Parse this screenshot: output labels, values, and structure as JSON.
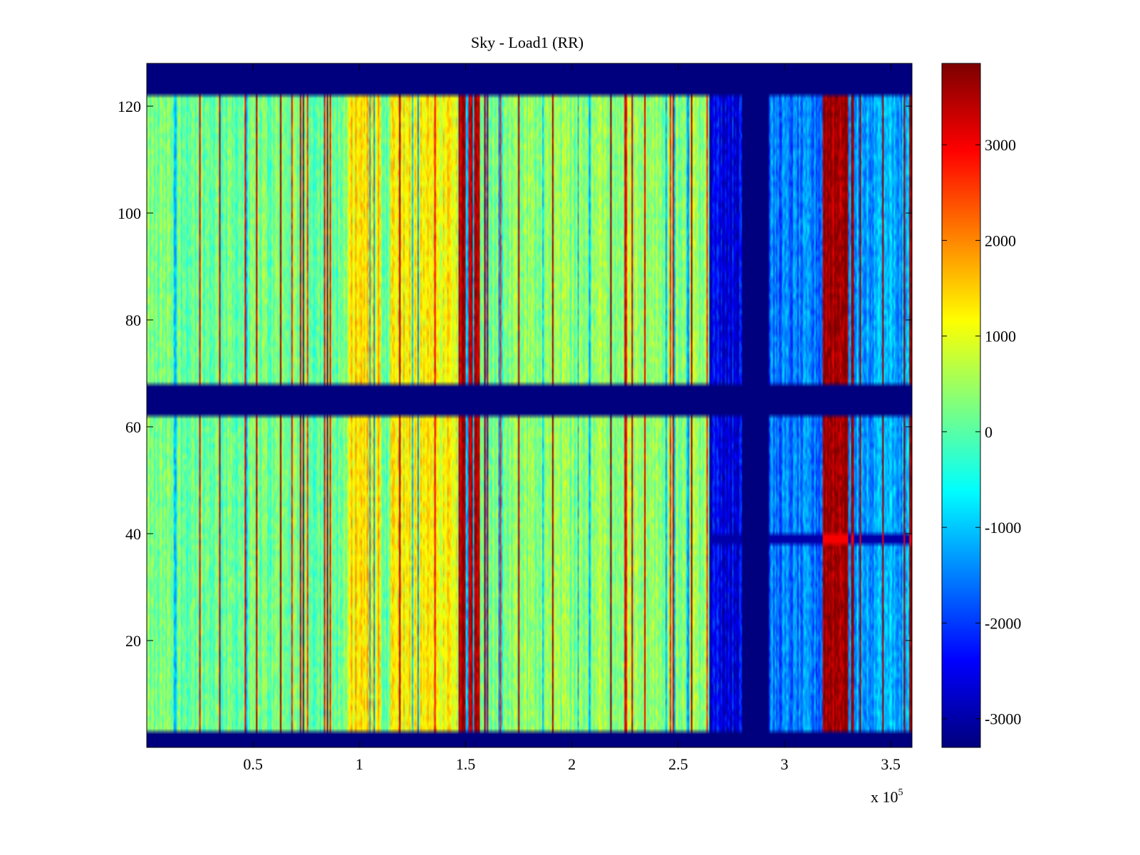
{
  "chart_data": {
    "type": "heatmap",
    "title": "Sky - Load1 (RR)",
    "xlabel": "",
    "ylabel": "",
    "x_multiplier_label": "x 10",
    "x_multiplier_exponent": "5",
    "xlim": [
      0,
      3.6
    ],
    "ylim": [
      0,
      128
    ],
    "x_ticks": [
      0.5,
      1,
      1.5,
      2,
      2.5,
      3,
      3.5
    ],
    "x_tick_labels": [
      "0.5",
      "1",
      "1.5",
      "2",
      "2.5",
      "3",
      "3.5"
    ],
    "y_ticks": [
      20,
      40,
      60,
      80,
      100,
      120
    ],
    "y_tick_labels": [
      "20",
      "40",
      "60",
      "80",
      "100",
      "120"
    ],
    "colormap": "jet",
    "colorbar": {
      "range": [
        -3300,
        3850
      ],
      "ticks": [
        -3000,
        -2000,
        -1000,
        0,
        1000,
        2000,
        3000
      ],
      "tick_labels": [
        "-3000",
        "-2000",
        "-1000",
        "0",
        "1000",
        "2000",
        "3000"
      ]
    },
    "flagged_value": -3300,
    "flagged_rows": [
      [
        0,
        3
      ],
      [
        62,
        68
      ],
      [
        122,
        128
      ]
    ],
    "flagged_columns": [
      [
        2.8,
        2.93
      ]
    ],
    "row_anomaly": {
      "y": 39,
      "description": "horizontal stripe across blue region"
    },
    "column_bands": [
      {
        "x_range": [
          0.0,
          0.95
        ],
        "level": 150,
        "label": "mixed green/cyan"
      },
      {
        "x_range": [
          0.95,
          1.1
        ],
        "level": 1400,
        "label": "striped red/yellow"
      },
      {
        "x_range": [
          1.15,
          1.46
        ],
        "level": 1200,
        "label": "striped orange/red"
      },
      {
        "x_range": [
          1.47,
          1.57
        ],
        "level": 3500,
        "label": "dark red band"
      },
      {
        "x_range": [
          1.57,
          2.65
        ],
        "level": 400,
        "label": "green/yellow"
      },
      {
        "x_range": [
          2.65,
          2.8
        ],
        "level": -2500,
        "label": "blue"
      },
      {
        "x_range": [
          2.93,
          3.18
        ],
        "level": -1600,
        "label": "light blue"
      },
      {
        "x_range": [
          3.18,
          3.3
        ],
        "level": 3700,
        "label": "dark red band"
      },
      {
        "x_range": [
          3.3,
          3.6
        ],
        "level": -1200,
        "label": "blue with red stripes"
      }
    ]
  }
}
